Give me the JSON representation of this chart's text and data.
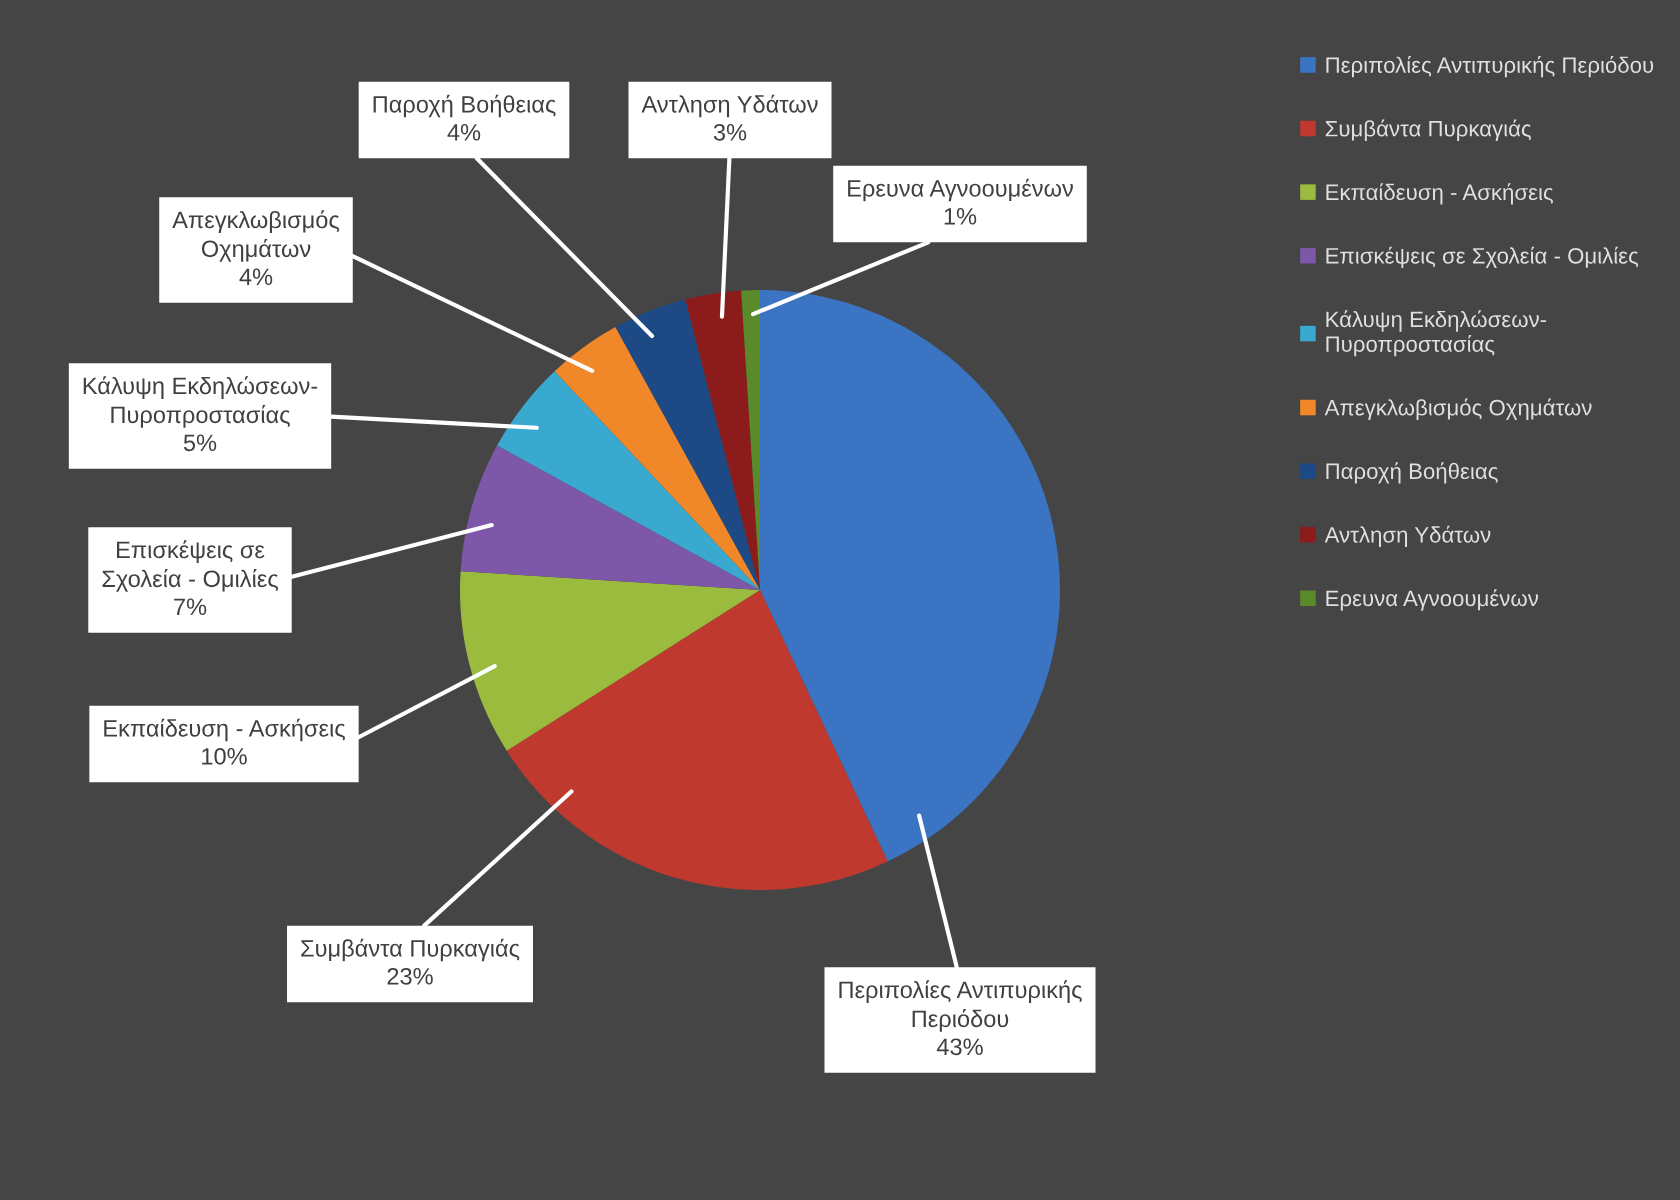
{
  "chart_data": {
    "type": "pie",
    "categories": [
      "Περιπολίες Αντιπυρικής Περιόδου",
      "Συμβάντα Πυρκαγιάς",
      "Εκπαίδευση - Ασκήσεις",
      "Επισκέψεις σε Σχολεία - Ομιλίες",
      "Κάλυψη Εκδηλώσεων-Πυροπροστασίας",
      "Απεγκλωβισμός Οχημάτων",
      "Παροχή Βοήθειας",
      "Αντληση Υδάτων",
      "Ερευνα Αγνοουμένων"
    ],
    "values": [
      43,
      23,
      10,
      7,
      5,
      4,
      4,
      3,
      1
    ],
    "colors": [
      "#3b74c2",
      "#c0392f",
      "#9bbb3f",
      "#7d58a8",
      "#39a9d0",
      "#f0882a",
      "#1d4a85",
      "#8c1c1c",
      "#5b8a2a"
    ],
    "value_labels": [
      "43%",
      "23%",
      "10%",
      "7%",
      "5%",
      "4%",
      "4%",
      "3%",
      "1%"
    ],
    "legend": "top right"
  }
}
